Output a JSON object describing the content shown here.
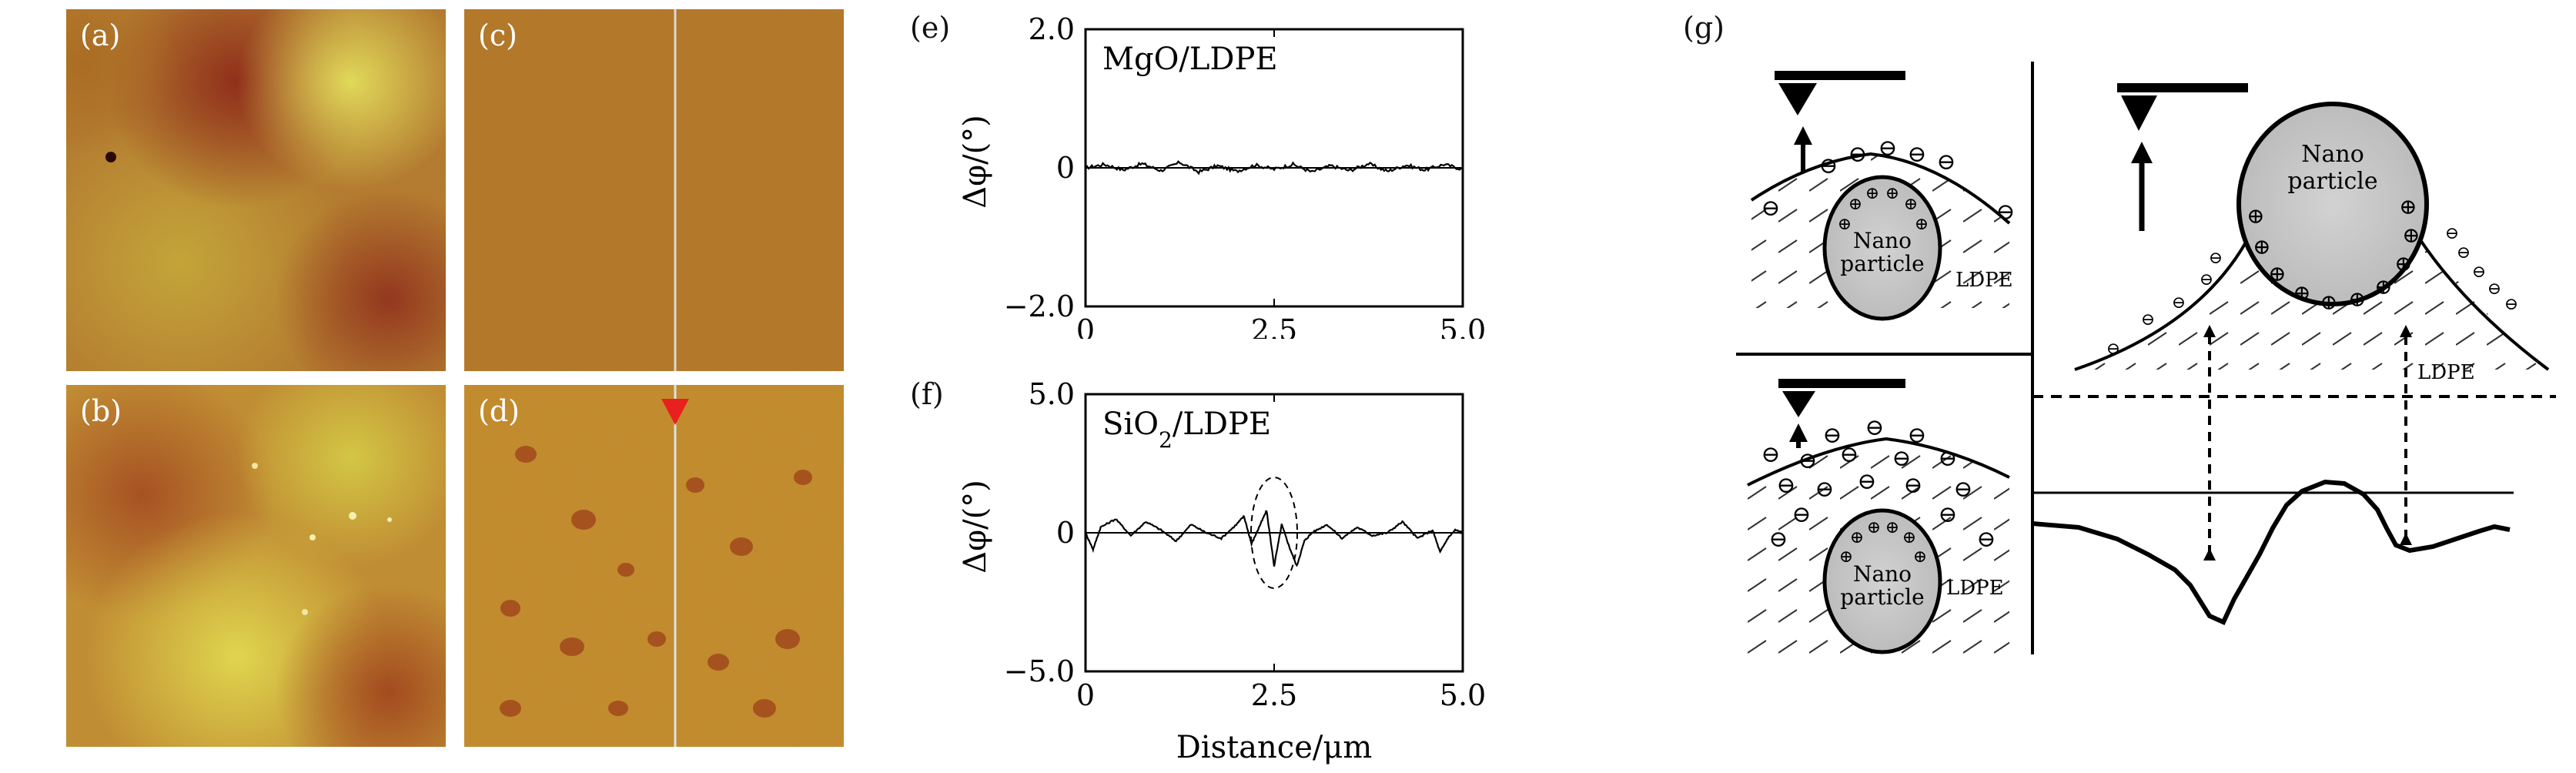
{
  "afm_panels": [
    {
      "label": "(a)",
      "description_icon": "afm-topography-mgo"
    },
    {
      "label": "(b)",
      "description_icon": "afm-topography-sio2"
    },
    {
      "label": "(c)",
      "description_icon": "afm-phase-mgo"
    },
    {
      "label": "(d)",
      "description_icon": "afm-phase-sio2"
    }
  ],
  "chart_data": [
    {
      "type": "line",
      "panel_label": "(e)",
      "title": "MgO/LDPE",
      "xlabel": "",
      "ylabel": "Δφ/(°)",
      "xlim": [
        0,
        5.0
      ],
      "ylim": [
        -2.0,
        2.0
      ],
      "xticks": [
        "0",
        "2.5",
        "5.0"
      ],
      "yticks": [
        "2.0",
        "0",
        "−2.0"
      ],
      "series": [
        {
          "x": [
            0,
            0.25,
            0.5,
            0.75,
            1.0,
            1.25,
            1.5,
            1.75,
            2.0,
            2.25,
            2.5,
            2.75,
            3.0,
            3.25,
            3.5,
            3.75,
            4.0,
            4.25,
            4.5,
            4.75,
            5.0
          ],
          "values": [
            0.0,
            0.05,
            -0.03,
            0.06,
            -0.04,
            0.08,
            -0.06,
            0.03,
            -0.05,
            0.04,
            -0.02,
            0.05,
            -0.06,
            0.03,
            -0.04,
            0.06,
            -0.05,
            0.04,
            -0.03,
            0.05,
            -0.02
          ]
        }
      ]
    },
    {
      "type": "line",
      "panel_label": "(f)",
      "title": "SiO",
      "title_sub": "2",
      "title_rest": "/LDPE",
      "xlabel": "Distance/μm",
      "ylabel": "Δφ/(°)",
      "xlim": [
        0,
        5.0
      ],
      "ylim": [
        -5.0,
        5.0
      ],
      "xticks": [
        "0",
        "2.5",
        "5.0"
      ],
      "yticks": [
        "5.0",
        "0",
        "−5.0"
      ],
      "series": [
        {
          "x": [
            0,
            0.1,
            0.2,
            0.4,
            0.6,
            0.8,
            1.0,
            1.2,
            1.4,
            1.6,
            1.8,
            2.0,
            2.1,
            2.2,
            2.3,
            2.4,
            2.5,
            2.6,
            2.7,
            2.8,
            2.9,
            3.0,
            3.2,
            3.4,
            3.6,
            3.8,
            4.0,
            4.2,
            4.4,
            4.6,
            4.7,
            4.8,
            4.9,
            5.0
          ],
          "values": [
            0.0,
            -0.6,
            0.2,
            0.5,
            -0.1,
            0.4,
            0.1,
            -0.3,
            0.3,
            0.0,
            -0.2,
            0.3,
            0.6,
            -0.4,
            0.2,
            0.8,
            -1.2,
            0.3,
            -0.5,
            -1.2,
            -0.3,
            0.0,
            0.3,
            -0.2,
            0.2,
            -0.1,
            0.0,
            0.4,
            -0.2,
            0.1,
            -0.7,
            -0.2,
            0.1,
            0.0
          ]
        }
      ]
    }
  ],
  "schematic": {
    "label": "(g)",
    "nano_label_small": "Nano particle",
    "nano_label_top": "Nano",
    "nano_label_bottom": "particle",
    "ldpe_label": "LDPE",
    "negative_charge": "⊖",
    "positive_charge": "⊕"
  }
}
